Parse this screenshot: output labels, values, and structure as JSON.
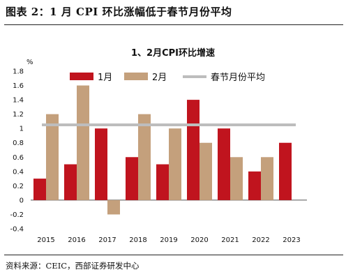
{
  "header": {
    "figure_title": "图表 2：1 月 CPI 环比涨幅低于春节月份平均"
  },
  "footer": {
    "source": "资料来源：CEIC，西部证券研发中心"
  },
  "colors": {
    "jan": "#c0141e",
    "feb": "#c4a07c",
    "spring_avg": "#bdbdbd"
  },
  "chart_data": {
    "type": "bar",
    "title": "1、2月CPI环比增速",
    "ylabel": "%",
    "ylim": [
      -0.4,
      1.8
    ],
    "yticks": [
      -0.4,
      -0.2,
      0,
      0.2,
      0.4,
      0.6,
      0.8,
      1,
      1.2,
      1.4,
      1.6,
      1.8
    ],
    "categories": [
      "2015",
      "2016",
      "2017",
      "2018",
      "2019",
      "2020",
      "2021",
      "2022",
      "2023"
    ],
    "series": [
      {
        "name": "1月",
        "values": [
          0.3,
          0.5,
          1.0,
          0.6,
          0.5,
          1.4,
          1.0,
          0.4,
          0.8
        ]
      },
      {
        "name": "2月",
        "values": [
          1.2,
          1.6,
          -0.2,
          1.2,
          1.0,
          0.8,
          0.6,
          0.6,
          null
        ]
      }
    ],
    "reference_line": {
      "name": "春节月份平均",
      "value": 1.05
    },
    "legend_position": "top",
    "grid": false
  }
}
